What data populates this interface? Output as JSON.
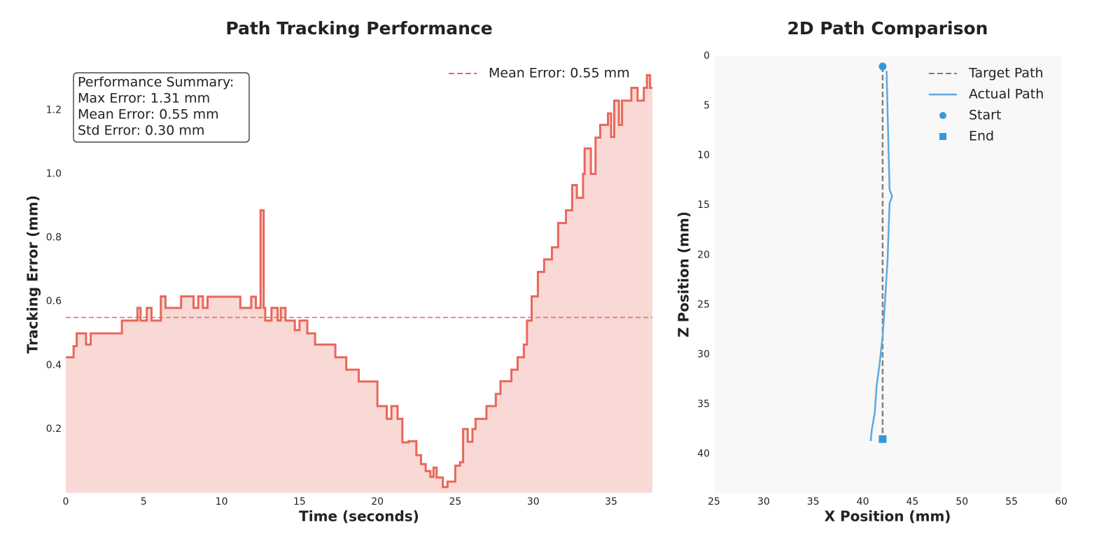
{
  "chart_data": [
    {
      "type": "step",
      "title": "Path Tracking Performance",
      "xlabel": "Time (seconds)",
      "ylabel": "Tracking Error (mm)",
      "x": [
        0,
        0.5,
        0.7,
        1.3,
        1.6,
        3.6,
        4.6,
        4.8,
        5.2,
        5.5,
        6.1,
        6.4,
        7.4,
        8.2,
        8.5,
        8.8,
        9.1,
        11.2,
        11.9,
        12.2,
        12.5,
        12.7,
        12.8,
        13.2,
        13.6,
        13.8,
        14.1,
        14.7,
        15.0,
        15.5,
        16.0,
        17.3,
        18.0,
        18.8,
        20.0,
        20.6,
        20.9,
        21.3,
        21.6,
        22.0,
        22.5,
        22.8,
        23.1,
        23.4,
        23.6,
        23.8,
        24.2,
        24.5,
        25.0,
        25.3,
        25.5,
        25.8,
        26.1,
        26.3,
        27.0,
        27.6,
        27.9,
        28.6,
        29.0,
        29.4,
        29.6,
        29.9,
        30.3,
        30.7,
        31.2,
        31.6,
        32.1,
        32.5,
        32.8,
        33.2,
        33.3,
        33.7,
        34.0,
        34.3,
        34.8,
        35.0,
        35.2,
        35.5,
        35.7,
        36.3,
        36.7,
        37.1,
        37.3,
        37.5
      ],
      "values": [
        0.425,
        0.46,
        0.5,
        0.465,
        0.5,
        0.54,
        0.58,
        0.54,
        0.58,
        0.54,
        0.616,
        0.58,
        0.616,
        0.58,
        0.616,
        0.58,
        0.615,
        0.58,
        0.615,
        0.58,
        0.886,
        0.58,
        0.54,
        0.58,
        0.54,
        0.58,
        0.54,
        0.51,
        0.54,
        0.5,
        0.465,
        0.425,
        0.386,
        0.349,
        0.272,
        0.232,
        0.272,
        0.232,
        0.158,
        0.162,
        0.118,
        0.09,
        0.068,
        0.05,
        0.079,
        0.048,
        0.018,
        0.035,
        0.085,
        0.096,
        0.2,
        0.16,
        0.2,
        0.232,
        0.272,
        0.31,
        0.35,
        0.386,
        0.425,
        0.465,
        0.54,
        0.616,
        0.693,
        0.732,
        0.77,
        0.846,
        0.886,
        0.965,
        0.925,
        1.0,
        1.08,
        1.0,
        1.114,
        1.154,
        1.19,
        1.116,
        1.23,
        1.154,
        1.23,
        1.27,
        1.23,
        1.27,
        1.31,
        1.27
      ],
      "color": "#e8675a",
      "fill": true,
      "xlim": [
        0,
        37.65
      ],
      "xticks": [
        0,
        5,
        10,
        15,
        20,
        25,
        30,
        35
      ],
      "ylim": [
        0,
        1.37
      ],
      "yticks": [
        0.2,
        0.4,
        0.6,
        0.8,
        {
          "value": 1,
          "label": "1.0"
        },
        1.2
      ],
      "hlines": [
        {
          "value": 0.55,
          "label": "Mean Error: 0.55 mm",
          "color": "#e8675a",
          "style": "dashed"
        }
      ],
      "annotation": [
        "Performance Summary:",
        "Max Error: 1.31 mm",
        "Mean Error: 0.55 mm",
        "Std Error: 0.30 mm"
      ],
      "legend": "upper right",
      "grid": false
    },
    {
      "type": "line",
      "title": "2D Path Comparison",
      "xlabel": "X Position (mm)",
      "ylabel": "Z Position (mm)",
      "xlim": [
        25,
        60
      ],
      "xticks": [
        25,
        30,
        35,
        40,
        45,
        50,
        55,
        60
      ],
      "ylim": [
        0,
        43.9
      ],
      "yticks": [
        0,
        5,
        10,
        15,
        20,
        25,
        30,
        35,
        40
      ],
      "y_inverted": true,
      "background": "#f8f8f8",
      "legend": "upper right",
      "grid": false,
      "series": [
        {
          "name": "Target Path",
          "kind": "line",
          "style": "dashed",
          "color": "#808080",
          "x": [
            42,
            42
          ],
          "values": [
            1.05,
            38.5
          ]
        },
        {
          "name": "Actual Path",
          "kind": "line",
          "style": "solid",
          "color": "#5aaae0",
          "x": [
            42.4,
            42.5,
            42.7,
            42.95,
            42.7,
            42.5,
            42.2,
            42.0,
            41.7,
            41.4,
            41.2,
            40.9,
            40.8
          ],
          "values": [
            1.5,
            5.7,
            13.4,
            14.1,
            14.8,
            20.4,
            25.3,
            28.1,
            30.9,
            33.1,
            35.9,
            37.6,
            38.7
          ]
        },
        {
          "name": "Start",
          "kind": "scatter",
          "marker": "circle",
          "color": "#3498db",
          "x": [
            42
          ],
          "values": [
            1.05
          ]
        },
        {
          "name": "End",
          "kind": "scatter",
          "marker": "square",
          "color": "#3498db",
          "x": [
            42
          ],
          "values": [
            38.5
          ]
        }
      ]
    }
  ]
}
